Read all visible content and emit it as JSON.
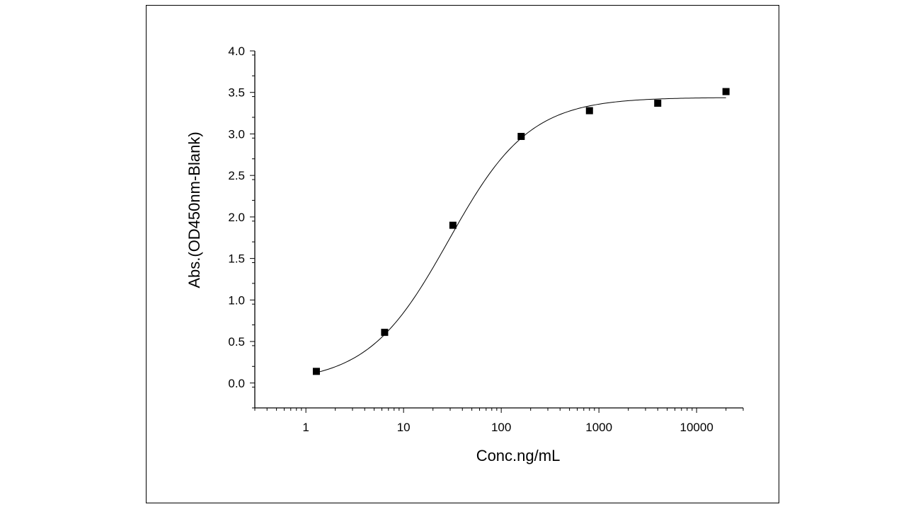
{
  "chart_data": {
    "type": "scatter",
    "title": "",
    "xlabel": "Conc.ng/mL",
    "ylabel": "Abs.(OD450nm-Blank)",
    "x_scale": "log",
    "xlim": [
      0.3,
      30000
    ],
    "ylim": [
      -0.3,
      4.0
    ],
    "x_ticks": [
      1,
      10,
      100,
      1000,
      10000
    ],
    "x_tick_labels": [
      "1",
      "10",
      "100",
      "1000",
      "10000"
    ],
    "y_ticks": [
      0.0,
      0.5,
      1.0,
      1.5,
      2.0,
      2.5,
      3.0,
      3.5,
      4.0
    ],
    "y_tick_labels": [
      "0.0",
      "0.5",
      "1.0",
      "1.5",
      "2.0",
      "2.5",
      "3.0",
      "3.5",
      "4.0"
    ],
    "grid": false,
    "legend": "none",
    "series": [
      {
        "marker": "square",
        "color": "#000000",
        "x": [
          1.28,
          6.4,
          32,
          160,
          800,
          4000,
          20000
        ],
        "y": [
          0.14,
          0.61,
          1.9,
          2.97,
          3.28,
          3.37,
          3.51
        ]
      }
    ],
    "fit_curve": {
      "type": "4PL",
      "color": "#000000",
      "bottom": 0.0,
      "top": 3.44,
      "ec50": 29,
      "hill": 1.05,
      "x_range": [
        1.28,
        20000
      ]
    }
  }
}
